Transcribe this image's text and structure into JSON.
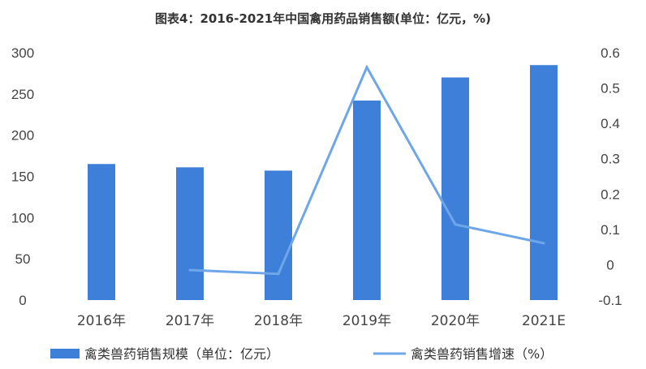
{
  "chart_data": {
    "type": "bar+line",
    "title": "图表4：2016-2021年中国禽用药品销售额(单位：亿元，%)",
    "categories": [
      "2016年",
      "2017年",
      "2018年",
      "2019年",
      "2020年",
      "2021E"
    ],
    "series": [
      {
        "name": "禽类兽药销售规模（单位：亿元）",
        "type": "bar",
        "axis": "left",
        "color": "#3d7fd9",
        "values": [
          165,
          161,
          157,
          242,
          270,
          285
        ]
      },
      {
        "name": "禽类兽药销售增速（%）",
        "type": "line",
        "axis": "right",
        "color": "#6ea6e8",
        "values": [
          null,
          -0.015,
          -0.026,
          0.559,
          0.114,
          0.061
        ]
      }
    ],
    "y_left": {
      "range": [
        0,
        300
      ],
      "ticks": [
        "0",
        "50",
        "100",
        "150",
        "200",
        "250",
        "300"
      ]
    },
    "y_right": {
      "range": [
        -0.1,
        0.6
      ],
      "ticks": [
        "-0.1",
        "0",
        "0.1",
        "0.2",
        "0.3",
        "0.4",
        "0.5",
        "0.6"
      ]
    },
    "grid": false,
    "legend": "bottom"
  }
}
